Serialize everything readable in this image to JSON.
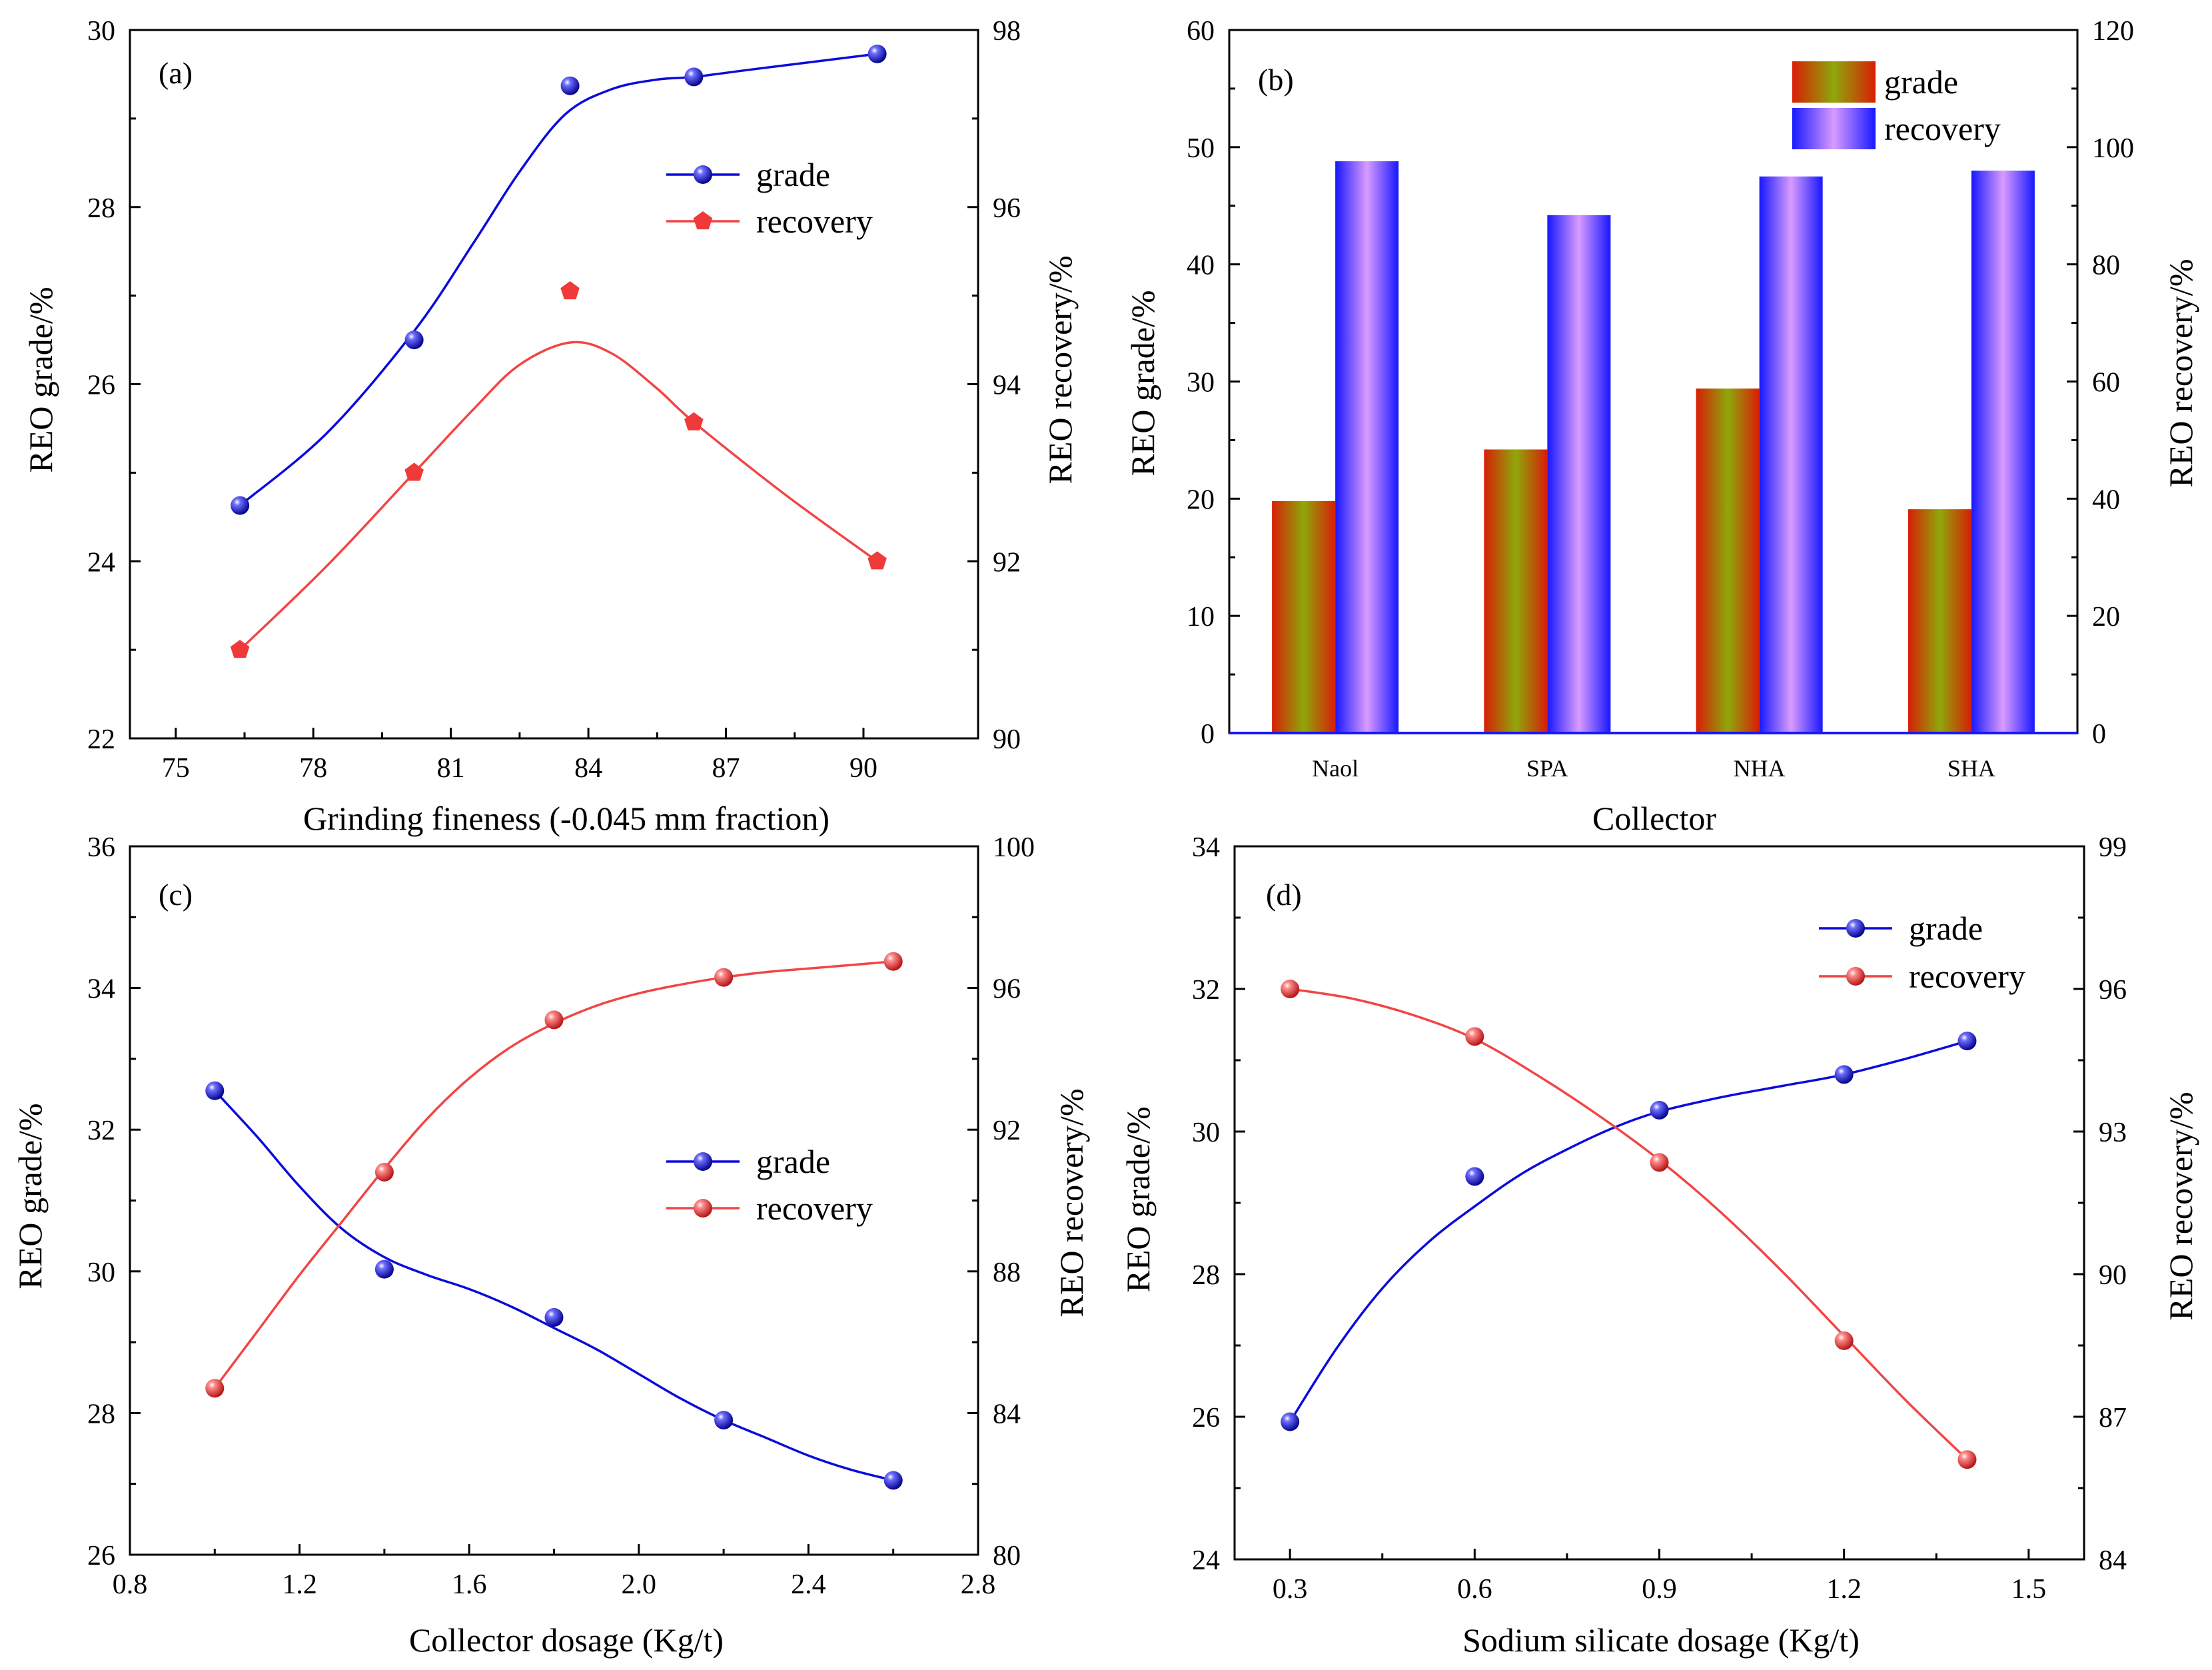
{
  "colors": {
    "blue": "#0b0bdc",
    "red": "#f24545"
  },
  "chart_data": [
    {
      "id": "a",
      "type": "line",
      "panel_label": "(a)",
      "xlabel": "Grinding fineness (-0.045 mm fraction)",
      "ylabel": "REO  grade/%",
      "y2label": "REO  recovery/%",
      "xlim": [
        74,
        92.5
      ],
      "ylim": [
        22,
        30
      ],
      "y2lim": [
        90,
        98
      ],
      "xticks": [
        75,
        78,
        81,
        84,
        87,
        90
      ],
      "xtick_labels": [
        "75",
        "78",
        "81",
        "84",
        "87",
        "90"
      ],
      "yticks": [
        22,
        24,
        26,
        28,
        30
      ],
      "ytick_labels": [
        "22",
        "24",
        "26",
        "28",
        "30"
      ],
      "y2ticks": [
        90,
        92,
        94,
        96,
        98
      ],
      "y2tick_labels": [
        "90",
        "92",
        "94",
        "96",
        "98"
      ],
      "legend_position": "upper-right",
      "series": [
        {
          "name": "grade",
          "axis": "left",
          "marker": "sphere",
          "color": "#0b0bdc",
          "x": [
            76.4,
            80.2,
            83.6,
            86.3,
            90.3
          ],
          "y": [
            24.63,
            26.5,
            29.37,
            29.47,
            29.73
          ],
          "curve_x": [
            76.4,
            78.3,
            80.2,
            81.5,
            82.5,
            83.5,
            84.5,
            85.5,
            86.3,
            87.5,
            90.3
          ],
          "curve_y": [
            24.63,
            25.45,
            26.6,
            27.6,
            28.4,
            29.05,
            29.33,
            29.44,
            29.47,
            29.55,
            29.73
          ]
        },
        {
          "name": "recovery",
          "axis": "right",
          "marker": "pentagon",
          "color": "#f24545",
          "x": [
            76.4,
            80.2,
            83.6,
            86.3,
            90.3
          ],
          "y": [
            91.0,
            93.0,
            95.05,
            93.57,
            92.0
          ],
          "curve_x": [
            76.4,
            78.3,
            80.2,
            81.5,
            82.5,
            83.6,
            84.5,
            85.5,
            86.3,
            88.3,
            90.3
          ],
          "curve_y": [
            91.0,
            91.95,
            93.0,
            93.72,
            94.22,
            94.47,
            94.35,
            93.95,
            93.57,
            92.75,
            92.0
          ]
        }
      ]
    },
    {
      "id": "b",
      "type": "bar",
      "panel_label": "(b)",
      "xlabel": "Collector",
      "ylabel": "REO  grade/%",
      "y2label": "REO  recovery/%",
      "ylim": [
        0,
        60
      ],
      "y2lim": [
        0,
        120
      ],
      "yticks": [
        0,
        10,
        20,
        30,
        40,
        50,
        60
      ],
      "ytick_labels": [
        "0",
        "10",
        "20",
        "30",
        "40",
        "50",
        "60"
      ],
      "y2ticks": [
        0,
        20,
        40,
        60,
        80,
        100,
        120
      ],
      "y2tick_labels": [
        "0",
        "20",
        "40",
        "60",
        "80",
        "100",
        "120"
      ],
      "categories": [
        "Naol",
        "SPA",
        "NHA",
        "SHA"
      ],
      "legend_position": "top-right",
      "series": [
        {
          "name": "grade",
          "axis": "left",
          "values": [
            19.8,
            24.2,
            29.4,
            19.1
          ]
        },
        {
          "name": "recovery",
          "axis": "right",
          "values": [
            97.6,
            88.4,
            95.0,
            96.0
          ]
        }
      ]
    },
    {
      "id": "c",
      "type": "line",
      "panel_label": "(c)",
      "xlabel": "Collector dosage (Kg/t)",
      "ylabel": "REO  grade/%",
      "y2label": "REO  recovery/%",
      "xlim": [
        0.8,
        2.8
      ],
      "ylim": [
        26,
        36
      ],
      "y2lim": [
        80,
        100
      ],
      "xticks": [
        0.8,
        1.2,
        1.6,
        2.0,
        2.4,
        2.8
      ],
      "xtick_labels": [
        "0.8",
        "1.2",
        "1.6",
        "2.0",
        "2.4",
        "2.8"
      ],
      "yticks": [
        26,
        28,
        30,
        32,
        34,
        36
      ],
      "ytick_labels": [
        "26",
        "28",
        "30",
        "32",
        "34",
        "36"
      ],
      "y2ticks": [
        80,
        84,
        88,
        92,
        96,
        100
      ],
      "y2tick_labels": [
        "80",
        "84",
        "88",
        "92",
        "96",
        "100"
      ],
      "legend_position": "center-right",
      "series": [
        {
          "name": "grade",
          "axis": "left",
          "marker": "sphere",
          "color": "#0b0bdc",
          "x": [
            1.0,
            1.4,
            1.8,
            2.2,
            2.6
          ],
          "y": [
            32.55,
            30.03,
            29.35,
            27.9,
            27.05
          ],
          "curve_x": [
            1.0,
            1.1,
            1.2,
            1.3,
            1.4,
            1.5,
            1.6,
            1.7,
            1.8,
            1.9,
            2.0,
            2.1,
            2.2,
            2.3,
            2.4,
            2.5,
            2.6
          ],
          "curve_y": [
            32.55,
            31.9,
            31.2,
            30.6,
            30.2,
            29.95,
            29.75,
            29.5,
            29.2,
            28.9,
            28.55,
            28.2,
            27.9,
            27.65,
            27.4,
            27.2,
            27.05
          ]
        },
        {
          "name": "recovery",
          "axis": "right",
          "marker": "sphere",
          "color": "#f24545",
          "x": [
            1.0,
            1.4,
            1.8,
            2.2,
            2.6
          ],
          "y": [
            84.7,
            90.8,
            95.1,
            96.3,
            96.75
          ],
          "curve_x": [
            1.0,
            1.1,
            1.2,
            1.3,
            1.4,
            1.5,
            1.6,
            1.7,
            1.8,
            1.9,
            2.0,
            2.1,
            2.2,
            2.3,
            2.4,
            2.5,
            2.6
          ],
          "curve_y": [
            84.7,
            86.3,
            87.9,
            89.4,
            90.9,
            92.3,
            93.45,
            94.35,
            95.0,
            95.5,
            95.85,
            96.1,
            96.3,
            96.45,
            96.55,
            96.65,
            96.75
          ]
        }
      ]
    },
    {
      "id": "d",
      "type": "line",
      "panel_label": "(d)",
      "xlabel": "Sodium silicate dosage (Kg/t)",
      "ylabel": "REO  grade/%",
      "y2label": "REO  recovery/%",
      "xlim": [
        0.21,
        1.59
      ],
      "ylim": [
        24,
        34
      ],
      "y2lim": [
        84,
        99
      ],
      "xticks": [
        0.3,
        0.6,
        0.9,
        1.2,
        1.5
      ],
      "xtick_labels": [
        "0.3",
        "0.6",
        "0.9",
        "1.2",
        "1.5"
      ],
      "yticks": [
        24,
        26,
        28,
        30,
        32,
        34
      ],
      "ytick_labels": [
        "24",
        "26",
        "28",
        "30",
        "32",
        "34"
      ],
      "y2ticks": [
        84,
        87,
        90,
        93,
        96,
        99
      ],
      "y2tick_labels": [
        "84",
        "87",
        "90",
        "93",
        "96",
        "99"
      ],
      "legend_position": "top-right",
      "series": [
        {
          "name": "grade",
          "axis": "left",
          "marker": "sphere",
          "color": "#0b0bdc",
          "x": [
            0.3,
            0.6,
            0.9,
            1.2,
            1.4
          ],
          "y": [
            25.93,
            29.37,
            30.3,
            30.8,
            31.27
          ],
          "curve_x": [
            0.3,
            0.375,
            0.45,
            0.525,
            0.6,
            0.675,
            0.75,
            0.825,
            0.9,
            1.0,
            1.1,
            1.2,
            1.3,
            1.4
          ],
          "curve_y": [
            25.93,
            26.95,
            27.8,
            28.45,
            28.95,
            29.4,
            29.75,
            30.05,
            30.28,
            30.48,
            30.64,
            30.8,
            31.02,
            31.27
          ]
        },
        {
          "name": "recovery",
          "axis": "right",
          "marker": "sphere",
          "color": "#f24545",
          "x": [
            0.3,
            0.6,
            0.9,
            1.2,
            1.4
          ],
          "y": [
            96.0,
            95.0,
            92.35,
            88.6,
            86.1
          ],
          "curve_x": [
            0.3,
            0.4,
            0.5,
            0.6,
            0.7,
            0.8,
            0.9,
            1.0,
            1.1,
            1.2,
            1.3,
            1.4
          ],
          "curve_y": [
            96.0,
            95.8,
            95.45,
            94.95,
            94.2,
            93.35,
            92.4,
            91.3,
            90.05,
            88.7,
            87.35,
            86.1
          ]
        }
      ]
    }
  ]
}
